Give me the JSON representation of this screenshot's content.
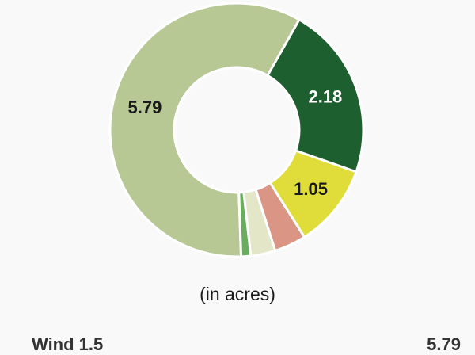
{
  "chart_data": {
    "type": "pie",
    "subtype": "donut",
    "unit_caption": "(in acres)",
    "slices": [
      {
        "value": 5.79,
        "label": "5.79",
        "color": "#b7c894",
        "label_color": "#1a1a1a"
      },
      {
        "value": 2.18,
        "label": "2.18",
        "color": "#1e5f2f",
        "label_color": "#ffffff"
      },
      {
        "value": 1.05,
        "label": "1.05",
        "color": "#e0dd3a",
        "label_color": "#1a1a1a"
      },
      {
        "value": 0.4,
        "label": "",
        "color": "#da9585",
        "label_color": "#1a1a1a"
      },
      {
        "value": 0.31,
        "label": "",
        "color": "#e4e6c8",
        "label_color": "#1a1a1a"
      },
      {
        "value": 0.12,
        "label": "",
        "color": "#6aad5e",
        "label_color": "#1a1a1a"
      }
    ]
  },
  "legend_cutoff": {
    "left_text": "Wind 1.5",
    "right_text": "5.79"
  }
}
